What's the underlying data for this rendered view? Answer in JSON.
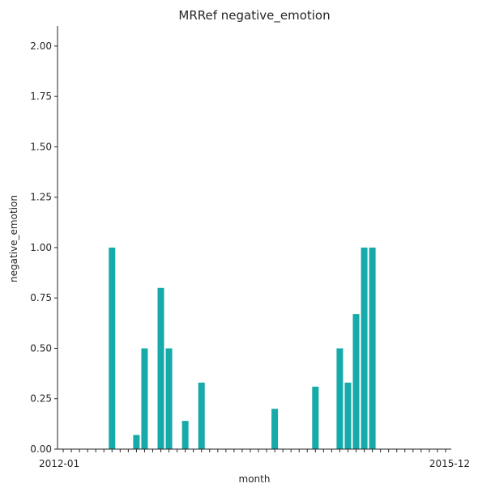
{
  "chart_data": {
    "type": "bar",
    "title": "MRRef negative_emotion",
    "xlabel": "month",
    "ylabel": "negative_emotion",
    "ylim": [
      0,
      2.1
    ],
    "yticks": [
      "0.00",
      "0.25",
      "0.50",
      "0.75",
      "1.00",
      "1.25",
      "1.50",
      "1.75",
      "2.00"
    ],
    "grid": false,
    "bar_color": "#17aaaa",
    "categories": [
      "2012-01",
      "2012-02",
      "2012-03",
      "2012-04",
      "2012-05",
      "2012-06",
      "2012-07",
      "2012-08",
      "2012-09",
      "2012-10",
      "2012-11",
      "2012-12",
      "2013-01",
      "2013-02",
      "2013-03",
      "2013-04",
      "2013-05",
      "2013-06",
      "2013-07",
      "2013-08",
      "2013-09",
      "2013-10",
      "2013-11",
      "2013-12",
      "2014-01",
      "2014-02",
      "2014-03",
      "2014-04",
      "2014-05",
      "2014-06",
      "2014-07",
      "2014-08",
      "2014-09",
      "2014-10",
      "2014-11",
      "2014-12",
      "2015-01",
      "2015-02",
      "2015-03",
      "2015-04",
      "2015-05",
      "2015-06",
      "2015-07",
      "2015-08",
      "2015-09",
      "2015-10",
      "2015-11",
      "2015-12"
    ],
    "values": [
      0,
      0,
      0,
      0,
      0,
      0,
      1.0,
      0,
      0,
      0.07,
      0.5,
      0,
      0.8,
      0.5,
      0,
      0.14,
      0,
      0.33,
      0,
      0,
      0,
      0,
      0,
      0,
      0,
      0,
      0.2,
      0,
      0,
      0,
      0,
      0.31,
      0,
      0,
      0.5,
      0.33,
      0.67,
      1.0,
      1.0,
      0,
      0,
      0,
      0,
      0,
      0,
      0,
      0,
      0
    ],
    "xticklabels_visible": [
      "2012-01",
      "2015-12"
    ]
  }
}
